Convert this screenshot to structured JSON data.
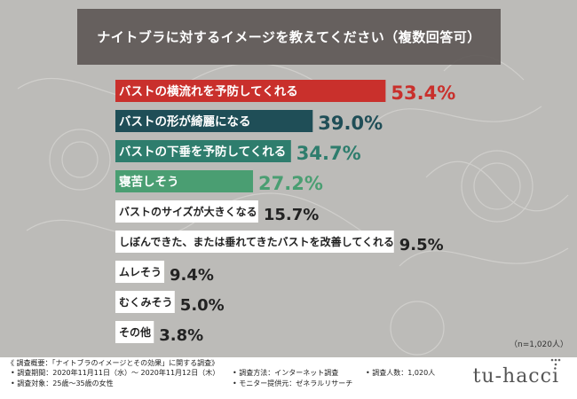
{
  "header": {
    "title": "ナイトブラに対するイメージを教えてください（複数回答可）"
  },
  "chart_data": {
    "type": "bar",
    "orientation": "horizontal",
    "categories": [
      "バストの横流れを予防してくれる",
      "バストの形が綺麗になる",
      "バストの下垂を予防してくれる",
      "寝苦しそう",
      "バストのサイズが大きくなる",
      "しぼんできた、または垂れてきたバストを改善してくれる",
      "ムレそう",
      "むくみそう",
      "その他"
    ],
    "values": [
      53.4,
      39.0,
      34.7,
      27.2,
      15.7,
      9.5,
      9.4,
      5.0,
      3.8
    ],
    "value_labels": [
      "53.4%",
      "39.0%",
      "34.7%",
      "27.2%",
      "15.7%",
      "9.5%",
      "9.4%",
      "5.0%",
      "3.8%"
    ],
    "bar_colors": [
      "#c9302c",
      "#1f4e57",
      "#2e7d6d",
      "#4a9e72",
      "#ffffff",
      "#ffffff",
      "#ffffff",
      "#ffffff",
      "#ffffff"
    ],
    "label_colors": [
      "#ffffff",
      "#ffffff",
      "#ffffff",
      "#ffffff",
      "#222222",
      "#222222",
      "#222222",
      "#222222",
      "#222222"
    ],
    "value_colors": [
      "#c9302c",
      "#1f4e57",
      "#2e7d6d",
      "#4a9e72",
      "#222222",
      "#222222",
      "#222222",
      "#222222",
      "#222222"
    ],
    "xlim": [
      0,
      60
    ],
    "grid": false,
    "legend": "none"
  },
  "note": "（n=1,020人）",
  "footer": {
    "summary": "《 調査概要：「ナイトブラのイメージとその効果」に関する調査》",
    "period": "• 調査期間：2020年11月11日（水）～ 2020年11月12日（木）",
    "method": "• 調査方法：インターネット調査",
    "count": "• 調査人数：1,020人",
    "target": "• 調査対象：25歳～35歳の女性",
    "provider": "• モニター提供元：ゼネラルリサーチ"
  },
  "logo": "tu-hacci"
}
